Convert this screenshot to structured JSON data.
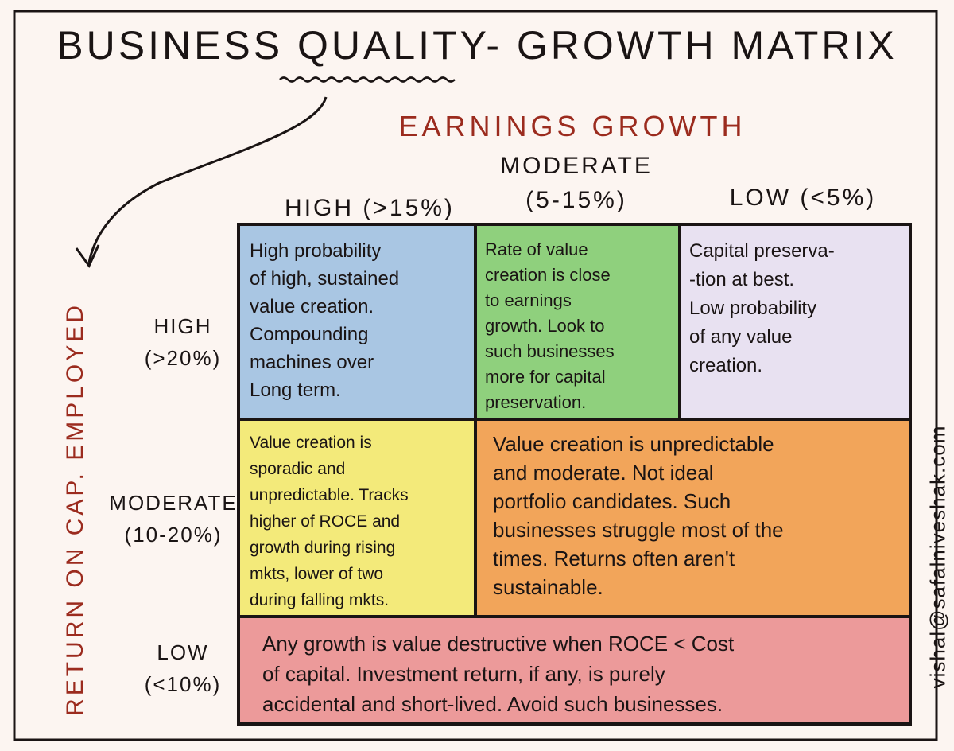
{
  "title": "BUSINESS QUALITY- GROWTH MATRIX",
  "x_axis_label": "EARNINGS GROWTH",
  "y_axis_label": "RETURN ON CAP. EMPLOYED",
  "columns": [
    {
      "label": "HIGH (>15%)"
    },
    {
      "label": "MODERATE",
      "range": "(5-15%)"
    },
    {
      "label": "LOW (<5%)"
    }
  ],
  "rows": [
    {
      "label": "HIGH",
      "range": "(>20%)"
    },
    {
      "label": "MODERATE",
      "range": "(10-20%)"
    },
    {
      "label": "LOW",
      "range": "(<10%)"
    }
  ],
  "cells": [
    {
      "lines": [
        "High probability",
        "of high, sustained",
        "value creation.",
        "Compounding",
        "machines over",
        "Long term."
      ]
    },
    {
      "lines": [
        "Rate of value",
        "creation is close",
        "to earnings",
        "growth. Look to",
        "such businesses",
        "more for capital",
        "preservation."
      ]
    },
    {
      "lines": [
        "Capital preserva-",
        "-tion at best.",
        "Low probability",
        "of any value",
        "creation."
      ]
    },
    {
      "lines": [
        "Value creation is",
        "sporadic and",
        "unpredictable. Tracks",
        "higher of ROCE and",
        "growth during rising",
        "mkts, lower of two",
        "during falling mkts."
      ]
    },
    {
      "lines": [
        "Value creation is unpredictable",
        "and moderate. Not ideal",
        "portfolio candidates. Such",
        "businesses struggle most of the",
        "times. Returns often aren't",
        "sustainable."
      ]
    },
    {
      "lines": [
        "Any growth is value destructive when ROCE < Cost",
        "of capital. Investment return, if any, is purely",
        "accidental and short-lived. Avoid such businesses."
      ]
    }
  ],
  "credit": "vishal@safalniveshak.com"
}
